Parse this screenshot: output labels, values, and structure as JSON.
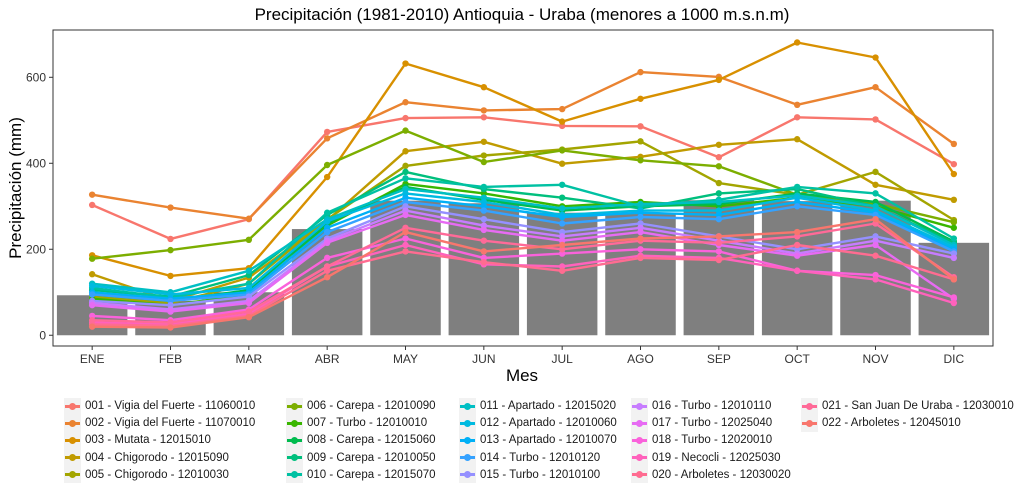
{
  "chart_data": {
    "type": "line",
    "title": "Precipitación (1981-2010) Antioquia - Uraba (menores a 1000 m.s.n.m)",
    "xlabel": "Mes",
    "ylabel": "Precipitación (mm)",
    "ylim": [
      -25,
      710
    ],
    "yticks": [
      0,
      200,
      400,
      600
    ],
    "categories": [
      "ENE",
      "FEB",
      "MAR",
      "ABR",
      "MAY",
      "JUN",
      "JUL",
      "AGO",
      "SEP",
      "OCT",
      "NOV",
      "DIC"
    ],
    "bars": [
      93,
      80,
      100,
      247,
      313,
      307,
      285,
      282,
      314,
      312,
      313,
      215
    ],
    "bar_color": "#7f7f7f",
    "grid": false,
    "legend_position": "bottom",
    "series": [
      {
        "name": "001 - Vigia del Fuerte - 11060010",
        "color": "#F8766D",
        "values": [
          303,
          224,
          270,
          473,
          505,
          507,
          487,
          486,
          414,
          507,
          502,
          398
        ]
      },
      {
        "name": "002 - Vigia del Fuerte - 11070010",
        "color": "#EA8331",
        "values": [
          327,
          297,
          271,
          458,
          542,
          523,
          526,
          612,
          601,
          536,
          577,
          445
        ]
      },
      {
        "name": "003 - Mutata - 12015010",
        "color": "#D89000",
        "values": [
          186,
          138,
          156,
          368,
          632,
          577,
          497,
          550,
          594,
          681,
          646,
          375
        ]
      },
      {
        "name": "004 - Chigorodo - 12015090",
        "color": "#C09B00",
        "values": [
          142,
          80,
          134,
          267,
          428,
          450,
          399,
          415,
          443,
          456,
          350,
          315
        ]
      },
      {
        "name": "005 - Chigorodo - 12010030",
        "color": "#A3A500",
        "values": [
          90,
          75,
          120,
          270,
          394,
          418,
          432,
          451,
          354,
          327,
          380,
          268
        ]
      },
      {
        "name": "006 - Carepa - 12010090",
        "color": "#7CAE00",
        "values": [
          178,
          198,
          222,
          396,
          476,
          403,
          430,
          407,
          393,
          327,
          306,
          263
        ]
      },
      {
        "name": "007 - Turbo - 12010010",
        "color": "#39B600",
        "values": [
          85,
          70,
          95,
          255,
          352,
          330,
          300,
          310,
          300,
          320,
          300,
          250
        ]
      },
      {
        "name": "008 - Carepa - 12015060",
        "color": "#00BB4E",
        "values": [
          95,
          80,
          105,
          260,
          345,
          315,
          290,
          300,
          305,
          330,
          310,
          218
        ]
      },
      {
        "name": "009 - Carepa - 12010050",
        "color": "#00BF7D",
        "values": [
          105,
          90,
          140,
          280,
          380,
          340,
          320,
          295,
          330,
          340,
          300,
          215
        ]
      },
      {
        "name": "010 - Carepa - 12015070",
        "color": "#00C1A3",
        "values": [
          110,
          88,
          120,
          285,
          365,
          345,
          350,
          300,
          315,
          345,
          330,
          225
        ]
      },
      {
        "name": "011 - Apartado - 12015020",
        "color": "#00BFC4",
        "values": [
          120,
          100,
          150,
          270,
          340,
          320,
          295,
          305,
          310,
          325,
          300,
          210
        ]
      },
      {
        "name": "012 - Apartado - 12010060",
        "color": "#00BAE0",
        "values": [
          115,
          95,
          110,
          265,
          330,
          310,
          280,
          290,
          290,
          320,
          290,
          205
        ]
      },
      {
        "name": "013 - Apartado - 12010070",
        "color": "#00B0F6",
        "values": [
          100,
          85,
          100,
          250,
          320,
          300,
          275,
          285,
          280,
          310,
          285,
          200
        ]
      },
      {
        "name": "014 - Turbo - 12010120",
        "color": "#35A2FF",
        "values": [
          95,
          80,
          95,
          240,
          310,
          290,
          260,
          275,
          270,
          300,
          280,
          195
        ]
      },
      {
        "name": "015 - Turbo - 12010100",
        "color": "#9590FF",
        "values": [
          80,
          70,
          90,
          225,
          300,
          270,
          240,
          260,
          230,
          200,
          230,
          190
        ]
      },
      {
        "name": "016 - Turbo - 12010110",
        "color": "#C77CFF",
        "values": [
          75,
          60,
          80,
          220,
          290,
          255,
          230,
          250,
          220,
          190,
          220,
          180
        ]
      },
      {
        "name": "017 - Turbo - 12025040",
        "color": "#E76BF3",
        "values": [
          70,
          55,
          75,
          215,
          280,
          245,
          220,
          240,
          210,
          185,
          210,
          85
        ]
      },
      {
        "name": "018 - Turbo - 12020010",
        "color": "#FA62DB",
        "values": [
          45,
          35,
          60,
          180,
          225,
          180,
          190,
          200,
          195,
          150,
          140,
          88
        ]
      },
      {
        "name": "019 - Necocli - 12025030",
        "color": "#FF62BC",
        "values": [
          30,
          25,
          50,
          160,
          210,
          165,
          160,
          185,
          180,
          150,
          130,
          75
        ]
      },
      {
        "name": "020 - Arboletes - 12030020",
        "color": "#FF6C91",
        "values": [
          25,
          22,
          45,
          150,
          195,
          170,
          150,
          180,
          175,
          210,
          185,
          130
        ]
      },
      {
        "name": "021 - San Juan De Uraba - 12030010",
        "color": "#FF6A98",
        "values": [
          35,
          30,
          55,
          160,
          250,
          220,
          200,
          220,
          215,
          230,
          260,
          135
        ]
      },
      {
        "name": "022 - Arboletes - 12045010",
        "color": "#F8766D",
        "values": [
          20,
          18,
          42,
          135,
          240,
          195,
          210,
          225,
          230,
          240,
          270,
          130
        ]
      }
    ]
  }
}
